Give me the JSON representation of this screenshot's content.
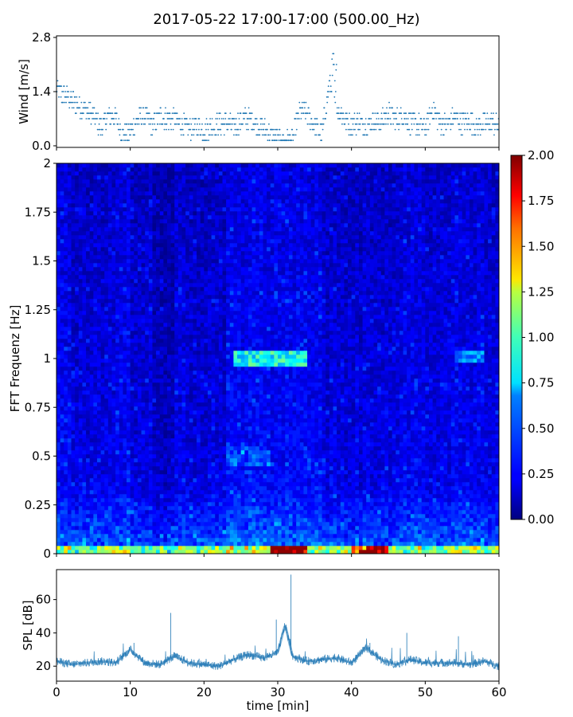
{
  "title": "2017-05-22 17:00-17:00 (500.00_Hz)",
  "chart_data": [
    {
      "type": "scatter",
      "panel": "wind",
      "ylabel": "Wind [m/s]",
      "xlim": [
        0,
        60
      ],
      "ylim": [
        0,
        2.8
      ],
      "yticks": [
        "0.0",
        "1.4",
        "2.8"
      ],
      "color": "#1f77b4",
      "step": 0.14,
      "values_description_free": true,
      "profile_x": [
        0,
        1,
        2,
        3,
        4,
        5,
        6,
        7,
        8,
        9,
        10,
        11,
        12,
        13,
        14,
        15,
        16,
        17,
        18,
        19,
        20,
        21,
        22,
        23,
        24,
        25,
        26,
        27,
        28,
        29,
        30,
        31,
        32,
        33,
        34,
        35,
        36,
        37,
        38,
        39,
        40,
        41,
        42,
        43,
        44,
        45,
        46,
        47,
        48,
        49,
        50,
        51,
        52,
        53,
        54,
        55,
        56,
        57,
        58,
        59,
        60
      ],
      "profile_y": [
        1.45,
        1.3,
        1.2,
        1.05,
        0.9,
        0.8,
        0.45,
        0.8,
        0.75,
        0.3,
        0.35,
        0.7,
        0.8,
        0.5,
        0.75,
        0.7,
        0.7,
        0.55,
        0.45,
        0.5,
        0.4,
        0.5,
        0.55,
        0.6,
        0.5,
        0.65,
        0.7,
        0.6,
        0.45,
        0.3,
        0.15,
        0.1,
        0.15,
        0.9,
        0.8,
        0.5,
        0.3,
        1.6,
        1.0,
        0.7,
        0.55,
        0.6,
        0.5,
        0.65,
        0.6,
        0.85,
        0.65,
        0.8,
        0.6,
        0.55,
        0.5,
        0.95,
        0.6,
        0.55,
        0.75,
        0.6,
        0.65,
        0.5,
        0.55,
        0.6,
        0.5
      ]
    },
    {
      "type": "heatmap",
      "panel": "spectrogram",
      "ylabel": "FFT Frequenz [Hz]",
      "xlim": [
        0,
        60
      ],
      "ylim": [
        0,
        2
      ],
      "yticks": [
        "0",
        "0.25",
        "0.5",
        "0.75",
        "1",
        "1.25",
        "1.5",
        "1.75",
        "2"
      ],
      "colormap": "jet",
      "colorbar": {
        "min": 0,
        "max": 2,
        "ticks": [
          "0.00",
          "0.25",
          "0.50",
          "0.75",
          "1.00",
          "1.25",
          "1.50",
          "1.75",
          "2.00"
        ]
      },
      "hot_bands": [
        {
          "x": [
            24,
            34
          ],
          "y": [
            0.95,
            1.05
          ],
          "level": 0.9
        },
        {
          "x": [
            54,
            58
          ],
          "y": [
            0.98,
            1.05
          ],
          "level": 0.6
        },
        {
          "x": [
            29,
            34
          ],
          "y": [
            0,
            0.05
          ],
          "level": 1.9
        },
        {
          "x": [
            40,
            45
          ],
          "y": [
            0,
            0.05
          ],
          "level": 1.5
        }
      ]
    },
    {
      "type": "line",
      "panel": "spl",
      "xlabel": "time [min]",
      "ylabel": "SPL [dB]",
      "xlim": [
        0,
        60
      ],
      "ylim": [
        11,
        78
      ],
      "xticks": [
        "0",
        "10",
        "20",
        "30",
        "40",
        "50",
        "60"
      ],
      "yticks": [
        "20",
        "40",
        "60"
      ],
      "color": "#1f77b4",
      "x": [
        0,
        2,
        4,
        6,
        8,
        9,
        10,
        12,
        14,
        16,
        18,
        20,
        22,
        24,
        26,
        28,
        30,
        31,
        32,
        34,
        36,
        38,
        40,
        42,
        44,
        46,
        48,
        50,
        52,
        54,
        56,
        58,
        60
      ],
      "y": [
        23,
        21,
        22,
        23,
        22,
        26,
        30,
        22,
        21,
        26,
        22,
        21,
        20,
        24,
        27,
        25,
        28,
        45,
        26,
        23,
        24,
        25,
        22,
        31,
        24,
        21,
        24,
        22,
        22,
        22,
        21,
        23,
        20
      ],
      "spikes": [
        {
          "x": 10.5,
          "y": 34
        },
        {
          "x": 15.5,
          "y": 52
        },
        {
          "x": 31.8,
          "y": 75
        },
        {
          "x": 29.8,
          "y": 48
        },
        {
          "x": 47.5,
          "y": 40
        },
        {
          "x": 54.5,
          "y": 38
        },
        {
          "x": 42.5,
          "y": 34
        }
      ]
    }
  ]
}
